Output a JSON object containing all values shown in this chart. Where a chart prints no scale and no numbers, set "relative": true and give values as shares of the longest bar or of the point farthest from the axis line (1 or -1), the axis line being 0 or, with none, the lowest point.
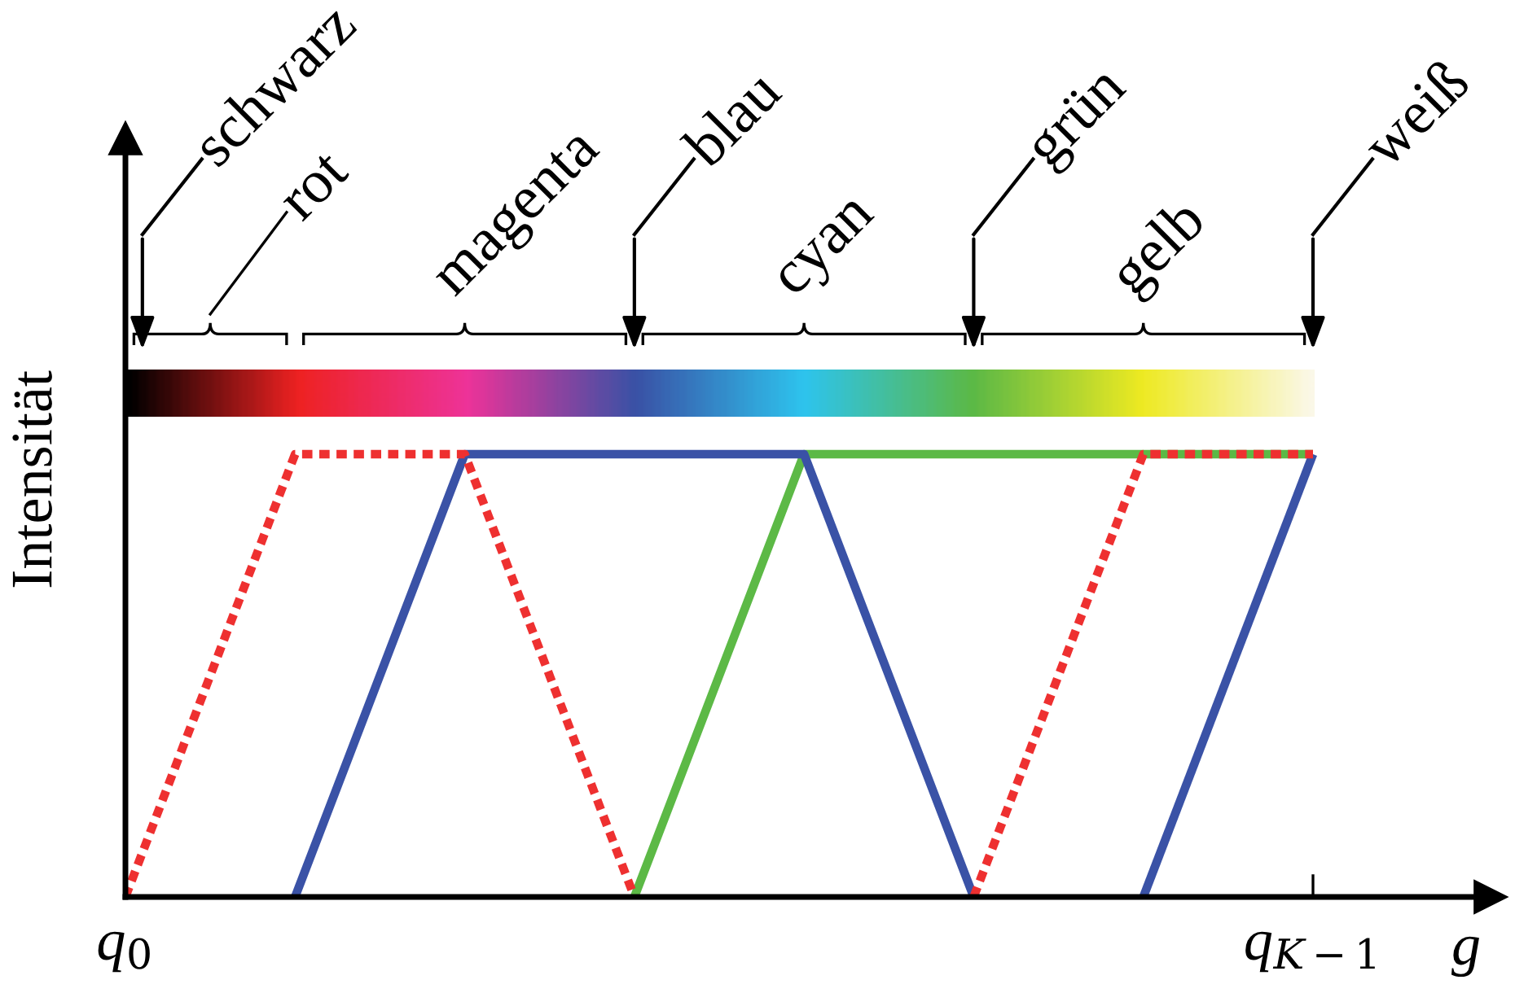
{
  "chart_data": {
    "type": "line",
    "relative": true,
    "xlabel": "g",
    "ylabel": "Intensität",
    "tick_labels": "x",
    "categories": [
      "q$_{0}$",
      null,
      null,
      null,
      null,
      null,
      null,
      "q$_{K−1}$"
    ],
    "series": [
      {
        "color": "#ee3030",
        "line_style": "dashed",
        "values": [
          0,
          1,
          1,
          0,
          null,
          null,
          null,
          null
        ]
      },
      {
        "color": "#ee3030",
        "line_style": "dashed",
        "values": [
          null,
          null,
          null,
          null,
          null,
          0,
          1,
          1
        ]
      },
      {
        "color": "#5cb946",
        "line_style": "solid",
        "values": [
          null,
          null,
          null,
          0,
          1,
          1,
          1,
          1
        ]
      },
      {
        "color": "#3a52a6",
        "line_style": "solid",
        "values": [
          null,
          0,
          1,
          1,
          1,
          0,
          null,
          null
        ]
      },
      {
        "color": "#3a52a6",
        "line_style": "solid",
        "values": [
          null,
          null,
          null,
          null,
          null,
          null,
          0,
          1
        ]
      }
    ],
    "annotations": [
      "schwarz",
      "rot",
      "magenta",
      "blau",
      "cyan",
      "grün",
      "gelb",
      "weiß"
    ]
  }
}
